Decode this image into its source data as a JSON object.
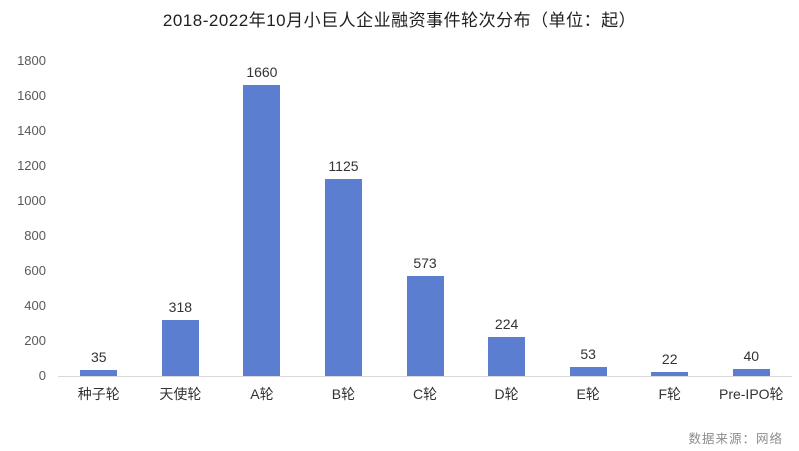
{
  "title": "2018-2022年10月小巨人企业融资事件轮次分布（单位：起）",
  "source": "数据来源：网络",
  "colors": {
    "bar": "#5b7ed1",
    "baseline": "#d9d9d9",
    "title_text": "#1f1f1f",
    "tick_text": "#595959",
    "label_text": "#333333",
    "source_text": "#8c8c8c",
    "background": "#ffffff"
  },
  "chart_data": {
    "type": "bar",
    "title": "2018-2022年10月小巨人企业融资事件轮次分布（单位：起）",
    "categories": [
      "种子轮",
      "天使轮",
      "A轮",
      "B轮",
      "C轮",
      "D轮",
      "E轮",
      "F轮",
      "Pre-IPO轮"
    ],
    "values": [
      35,
      318,
      1660,
      1125,
      573,
      224,
      53,
      22,
      40
    ],
    "xlabel": "",
    "ylabel": "",
    "ylim": [
      0,
      1800
    ],
    "ytick_step": 200,
    "grid": false,
    "legend": "none",
    "data_labels": true,
    "source_note": "数据来源：网络"
  }
}
